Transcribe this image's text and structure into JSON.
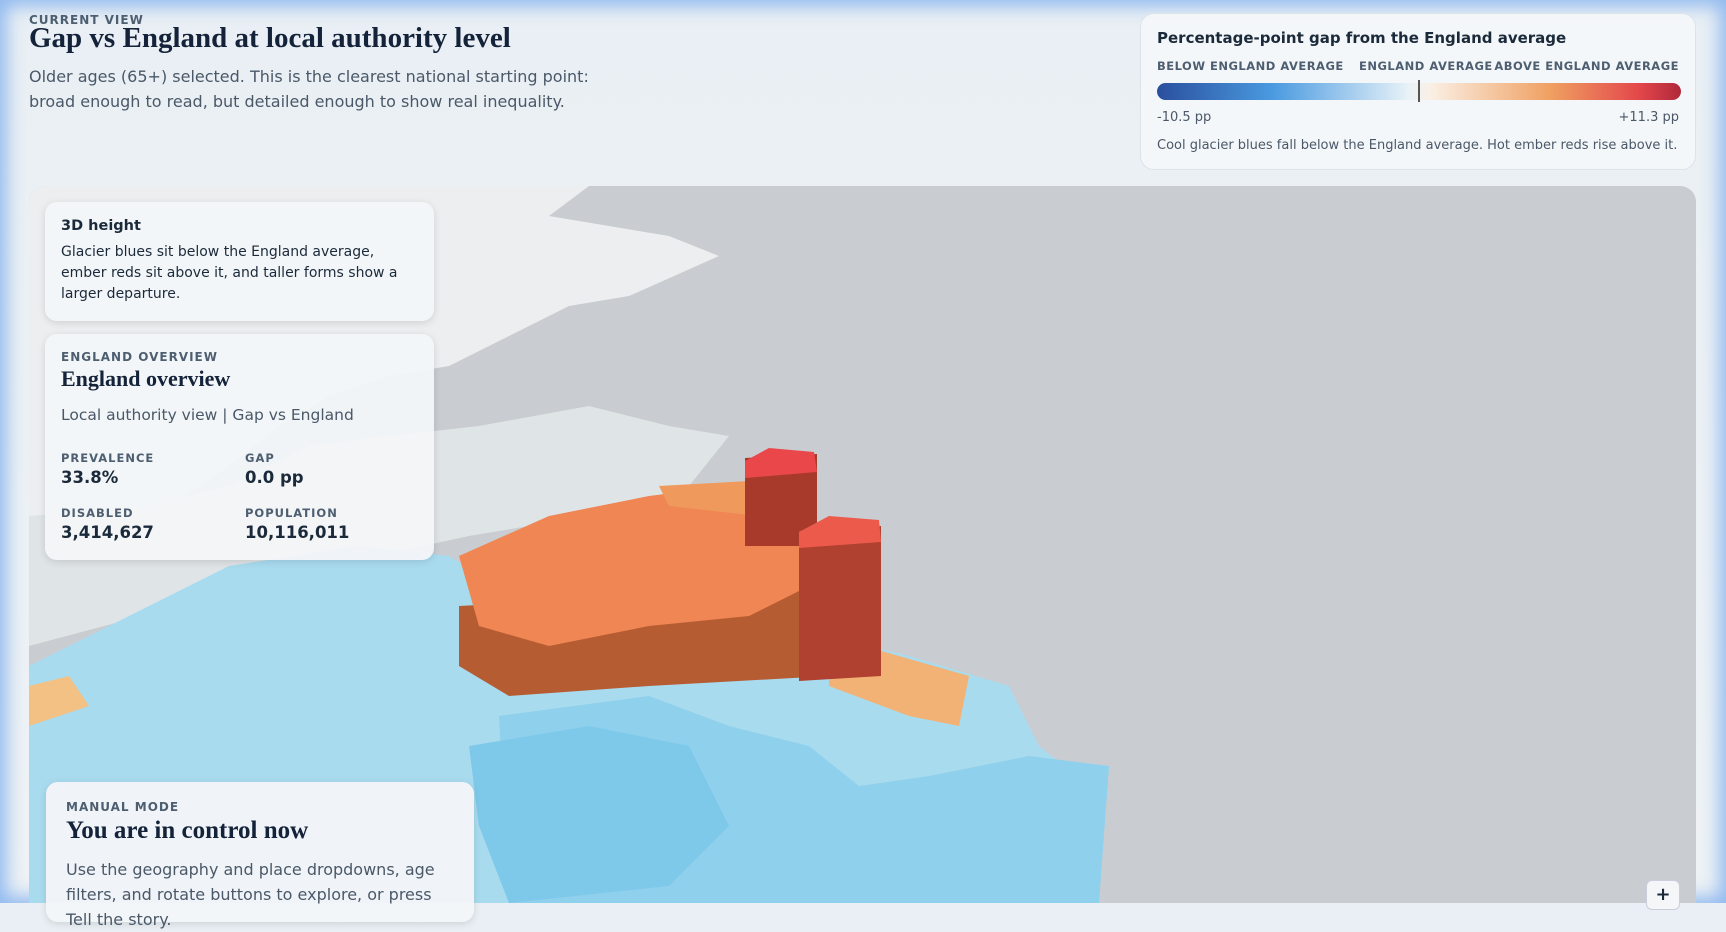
{
  "header": {
    "eyebrow": "CURRENT VIEW",
    "title": "Gap vs England at local authority level",
    "description": "Older ages (65+) selected. This is the clearest national starting point: broad enough to read, but detailed enough to show real inequality."
  },
  "legend": {
    "title": "Percentage-point gap from the England average",
    "labels": [
      "BELOW ENGLAND AVERAGE",
      "ENGLAND AVERAGE",
      "ABOVE ENGLAND AVERAGE"
    ],
    "min_label": "-10.5 pp",
    "max_label": "+11.3 pp",
    "note": "Cool glacier blues fall below the England average. Hot ember reds rise above it."
  },
  "height_card": {
    "title": "3D height",
    "text": "Glacier blues sit below the England average, ember reds sit above it, and taller forms show a larger departure."
  },
  "overview": {
    "eyebrow": "ENGLAND OVERVIEW",
    "title": "England overview",
    "subtitle": "Local authority view | Gap vs England",
    "stats": [
      {
        "label": "PREVALENCE",
        "value": "33.8%"
      },
      {
        "label": "GAP",
        "value": "0.0 pp"
      },
      {
        "label": "DISABLED",
        "value": "3,414,627"
      },
      {
        "label": "POPULATION",
        "value": "10,116,011"
      }
    ]
  },
  "manual": {
    "eyebrow": "MANUAL MODE",
    "title": "You are in control now",
    "text": "Use the geography and place dropdowns, age filters, and rotate buttons to explore, or press Tell the story."
  },
  "zoom": {
    "label": "+"
  }
}
